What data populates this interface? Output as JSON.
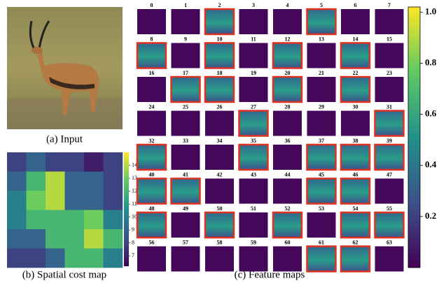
{
  "captions": {
    "input": "(a) Input",
    "cost_map": "(b) Spatial cost map",
    "feature_maps": "(c) Feature maps"
  },
  "cost_map": {
    "type": "heatmap",
    "values": [
      [
        8,
        9,
        8,
        8,
        7,
        8
      ],
      [
        9,
        12,
        14,
        9,
        9,
        8
      ],
      [
        10,
        13,
        14,
        9,
        9,
        8
      ],
      [
        10,
        12,
        12,
        12,
        13,
        10
      ],
      [
        9,
        9,
        12,
        12,
        14,
        12
      ],
      [
        8,
        8,
        9,
        12,
        12,
        10
      ]
    ],
    "ylim": [
      6.2,
      15
    ],
    "yticks": [
      7,
      8,
      9,
      10,
      11,
      12,
      13,
      14
    ]
  },
  "feature_maps": {
    "ylim": [
      0,
      1.02
    ],
    "yticks": [
      0.2,
      0.4,
      0.6,
      0.8,
      {
        "value": 1,
        "label": "1.0"
      }
    ],
    "maps": [
      {
        "label": "0",
        "highlighted": false
      },
      {
        "label": "1",
        "highlighted": false
      },
      {
        "label": "2",
        "highlighted": true
      },
      {
        "label": "3",
        "highlighted": false
      },
      {
        "label": "4",
        "highlighted": false
      },
      {
        "label": "5",
        "highlighted": true
      },
      {
        "label": "6",
        "highlighted": false
      },
      {
        "label": "7",
        "highlighted": false
      },
      {
        "label": "8",
        "highlighted": true
      },
      {
        "label": "9",
        "highlighted": false
      },
      {
        "label": "10",
        "highlighted": true
      },
      {
        "label": "11",
        "highlighted": false
      },
      {
        "label": "12",
        "highlighted": true
      },
      {
        "label": "13",
        "highlighted": false
      },
      {
        "label": "14",
        "highlighted": true
      },
      {
        "label": "15",
        "highlighted": false
      },
      {
        "label": "16",
        "highlighted": false
      },
      {
        "label": "17",
        "highlighted": true
      },
      {
        "label": "18",
        "highlighted": true
      },
      {
        "label": "19",
        "highlighted": false
      },
      {
        "label": "20",
        "highlighted": true
      },
      {
        "label": "21",
        "highlighted": false
      },
      {
        "label": "22",
        "highlighted": true
      },
      {
        "label": "23",
        "highlighted": false
      },
      {
        "label": "24",
        "highlighted": false
      },
      {
        "label": "25",
        "highlighted": false
      },
      {
        "label": "26",
        "highlighted": false
      },
      {
        "label": "27",
        "highlighted": true
      },
      {
        "label": "28",
        "highlighted": false
      },
      {
        "label": "29",
        "highlighted": false
      },
      {
        "label": "30",
        "highlighted": false
      },
      {
        "label": "31",
        "highlighted": true
      },
      {
        "label": "32",
        "highlighted": true
      },
      {
        "label": "33",
        "highlighted": false
      },
      {
        "label": "34",
        "highlighted": false
      },
      {
        "label": "35",
        "highlighted": true
      },
      {
        "label": "36",
        "highlighted": false
      },
      {
        "label": "37",
        "highlighted": true
      },
      {
        "label": "38",
        "highlighted": true
      },
      {
        "label": "39",
        "highlighted": true
      },
      {
        "label": "40",
        "highlighted": true
      },
      {
        "label": "41",
        "highlighted": true
      },
      {
        "label": "42",
        "highlighted": false
      },
      {
        "label": "43",
        "highlighted": false
      },
      {
        "label": "44",
        "highlighted": false
      },
      {
        "label": "45",
        "highlighted": true
      },
      {
        "label": "46",
        "highlighted": true
      },
      {
        "label": "47",
        "highlighted": false
      },
      {
        "label": "48",
        "highlighted": true
      },
      {
        "label": "49",
        "highlighted": false
      },
      {
        "label": "50",
        "highlighted": true
      },
      {
        "label": "51",
        "highlighted": false
      },
      {
        "label": "52",
        "highlighted": true
      },
      {
        "label": "53",
        "highlighted": false
      },
      {
        "label": "54",
        "highlighted": true
      },
      {
        "label": "55",
        "highlighted": true
      },
      {
        "label": "56",
        "highlighted": false
      },
      {
        "label": "57",
        "highlighted": false
      },
      {
        "label": "58",
        "highlighted": false
      },
      {
        "label": "59",
        "highlighted": false
      },
      {
        "label": "60",
        "highlighted": false
      },
      {
        "label": "61",
        "highlighted": true
      },
      {
        "label": "62",
        "highlighted": true
      },
      {
        "label": "63",
        "highlighted": false
      }
    ]
  }
}
